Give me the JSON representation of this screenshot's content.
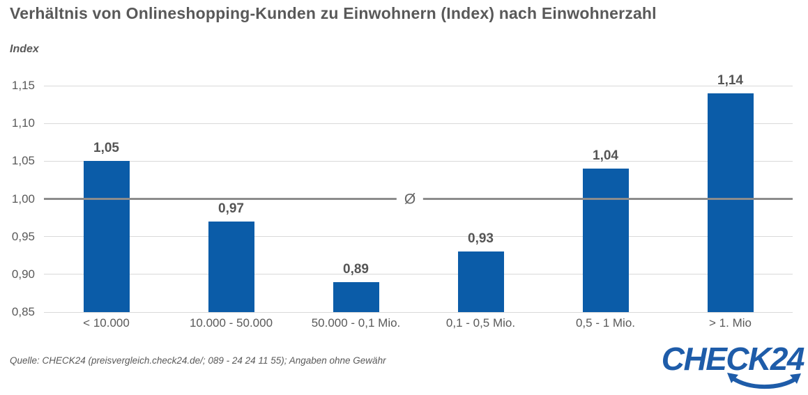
{
  "title": "Verhältnis von Onlineshopping-Kunden zu Einwohnern (Index) nach Einwohnerzahl",
  "source_note": "Quelle: CHECK24 (preisvergleich.check24.de/; 089 - 24 24 11 55); Angaben ohne Gewähr",
  "logo": {
    "text": "CHECK24",
    "swoosh_icon": "curved-arrow-smile-icon"
  },
  "colors": {
    "bar": "#0b5ca8",
    "title_text": "#595959",
    "axis_text": "#595959",
    "value_label_text": "#555555",
    "gridline": "#d9d9d9",
    "average_line": "#8c8c8c",
    "logo_blue": "#1e5ca9",
    "background": "#ffffff"
  },
  "chart_data": {
    "type": "bar",
    "title": "Verhältnis von Onlineshopping-Kunden zu Einwohnern (Index) nach Einwohnerzahl",
    "ylabel": "Index",
    "xlabel": "",
    "categories": [
      "< 10.000",
      "10.000 - 50.000",
      "50.000 - 0,1 Mio.",
      "0,1 - 0,5 Mio.",
      "0,5 - 1 Mio.",
      "> 1. Mio"
    ],
    "values": [
      1.05,
      0.97,
      0.89,
      0.93,
      1.04,
      1.14
    ],
    "value_labels": [
      "1,05",
      "0,97",
      "0,89",
      "0,93",
      "1,04",
      "1,14"
    ],
    "yticks": [
      1.15,
      1.1,
      1.05,
      1.0,
      0.95,
      0.9,
      0.85
    ],
    "ytick_labels": [
      "1,15",
      "1,10",
      "1,05",
      "1,00",
      "0,95",
      "0,90",
      "0,85"
    ],
    "ylim": [
      0.85,
      1.15
    ],
    "baseline": 0.85,
    "average_line": {
      "value": 1.0,
      "symbol": "Ø"
    },
    "grid": true,
    "legend": false,
    "bar_color": "#0b5ca8"
  }
}
